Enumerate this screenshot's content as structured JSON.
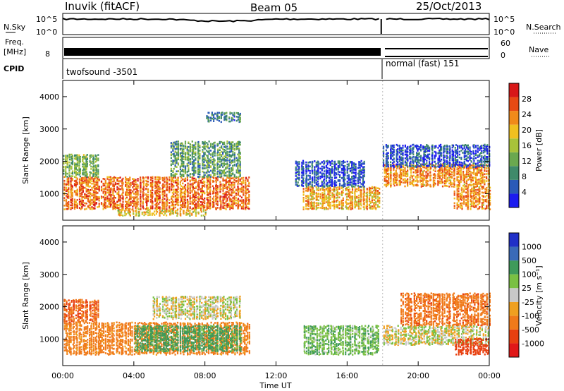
{
  "header": {
    "station": "Inuvik (fitACF)",
    "beam": "Beam 05",
    "date": "25/Oct/2013"
  },
  "strip_labels": {
    "nsky": "N.Sky",
    "freq_line1": "Freq.",
    "freq_line2": "[MHz]",
    "cpid": "CPID",
    "nsearch": "N.Search",
    "nave": "Nave"
  },
  "cpid_segments": [
    "twofsound -3501",
    "normal (fast) 151"
  ],
  "colors": {
    "power": [
      "#1c1cf0",
      "#2a5ab8",
      "#3f8a6a",
      "#6aa84f",
      "#a8c23a",
      "#f0c020",
      "#f08a1a",
      "#e84a14",
      "#d81818"
    ],
    "velocity": [
      "#2030c8",
      "#3a6ab8",
      "#3f9a5a",
      "#7ac043",
      "#c8c8c8",
      "#f0a020",
      "#f07a1a",
      "#e84010",
      "#e01818"
    ]
  },
  "chart_data": [
    {
      "type": "line",
      "panel": "noise",
      "left_axis": {
        "label": "N.Sky",
        "ticks": [
          "10^5",
          "10^0"
        ]
      },
      "right_axis": {
        "label": "N.Search",
        "ticks": [
          "10^5",
          "10^0"
        ]
      },
      "x": {
        "ticks": [
          "00:00",
          "04:00",
          "08:00",
          "12:00",
          "16:00",
          "20:00",
          "00:00"
        ]
      },
      "gap_at_hours": 18.0
    },
    {
      "type": "line",
      "panel": "frequency",
      "left_axis": {
        "label": "Freq. [MHz]",
        "ticks": [
          "8"
        ]
      },
      "right_axis": {
        "label": "Nave",
        "ticks": [
          "60",
          "0"
        ]
      },
      "gap_at_hours": 18.0
    },
    {
      "type": "heatmap",
      "panel": "power",
      "ylabel": "Slant Range [km]",
      "yticks": [
        "4000",
        "3000",
        "2000",
        "1000"
      ],
      "ylim": [
        180,
        4500
      ],
      "xlim_hours": [
        0,
        24
      ],
      "colorbar": {
        "label": "Power [dB]",
        "ticks": [
          "28",
          "24",
          "20",
          "16",
          "12",
          "8",
          "4"
        ]
      },
      "echo_bands": [
        {
          "t_start": 0.0,
          "t_end": 10.5,
          "range_low": 500,
          "range_high": 1500,
          "peak_db": 28
        },
        {
          "t_start": 0.0,
          "t_end": 2.0,
          "range_low": 1500,
          "range_high": 2200,
          "peak_db": 16
        },
        {
          "t_start": 6.0,
          "t_end": 10.0,
          "range_low": 1500,
          "range_high": 2600,
          "peak_db": 14
        },
        {
          "t_start": 8.0,
          "t_end": 10.0,
          "range_low": 3200,
          "range_high": 3500,
          "peak_db": 12
        },
        {
          "t_start": 3.0,
          "t_end": 8.0,
          "range_low": 300,
          "range_high": 500,
          "peak_db": 22
        },
        {
          "t_start": 13.5,
          "t_end": 17.8,
          "range_low": 500,
          "range_high": 1200,
          "peak_db": 24
        },
        {
          "t_start": 13.0,
          "t_end": 17.0,
          "range_low": 1200,
          "range_high": 2000,
          "peak_db": 8
        },
        {
          "t_start": 18.0,
          "t_end": 24.0,
          "range_low": 1200,
          "range_high": 1900,
          "peak_db": 26
        },
        {
          "t_start": 18.0,
          "t_end": 24.0,
          "range_low": 1800,
          "range_high": 2500,
          "peak_db": 8
        },
        {
          "t_start": 22.0,
          "t_end": 24.0,
          "range_low": 500,
          "range_high": 1200,
          "peak_db": 26
        }
      ]
    },
    {
      "type": "heatmap",
      "panel": "velocity",
      "ylabel": "Slant Range [km]",
      "yticks": [
        "4000",
        "3000",
        "2000",
        "1000"
      ],
      "ylim": [
        180,
        4500
      ],
      "xlabel": "Time UT",
      "xticks": [
        "00:00",
        "04:00",
        "08:00",
        "12:00",
        "16:00",
        "20:00",
        "00:00"
      ],
      "colorbar": {
        "label": "Velocity [m s⁻¹]",
        "ticks": [
          "1000",
          "500",
          "100",
          "25",
          "-25",
          "-100",
          "-500",
          "-1000"
        ]
      },
      "echo_bands": [
        {
          "t_start": 0.0,
          "t_end": 10.5,
          "range_low": 500,
          "range_high": 1500,
          "velocity": -150
        },
        {
          "t_start": 4.0,
          "t_end": 10.0,
          "range_low": 600,
          "range_high": 1400,
          "velocity": 150
        },
        {
          "t_start": 5.0,
          "t_end": 10.0,
          "range_low": 1600,
          "range_high": 2300,
          "velocity": 0
        },
        {
          "t_start": 0.0,
          "t_end": 2.0,
          "range_low": 1500,
          "range_high": 2200,
          "velocity": -300
        },
        {
          "t_start": 13.5,
          "t_end": 17.8,
          "range_low": 500,
          "range_high": 1400,
          "velocity": 80
        },
        {
          "t_start": 18.0,
          "t_end": 24.0,
          "range_low": 800,
          "range_high": 1400,
          "velocity": 0
        },
        {
          "t_start": 19.0,
          "t_end": 24.0,
          "range_low": 1400,
          "range_high": 2400,
          "velocity": -250
        },
        {
          "t_start": 22.0,
          "t_end": 24.0,
          "range_low": 500,
          "range_high": 1000,
          "velocity": -400
        }
      ]
    }
  ]
}
